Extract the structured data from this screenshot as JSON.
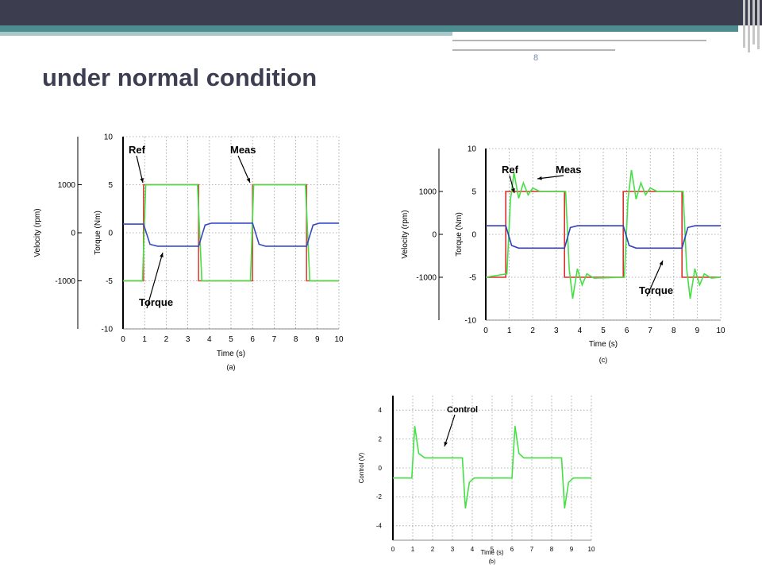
{
  "slide": {
    "title": "under normal condition",
    "page_number": "8"
  },
  "chart_data": [
    {
      "id": "a",
      "type": "line",
      "caption": "(a)",
      "xlabel": "Time (s)",
      "ylabel_left": "Velocity (rpm)",
      "ylabel_right": "Torque (Nm)",
      "xlim": [
        0,
        10
      ],
      "ylim": [
        -10,
        10
      ],
      "x_ticks": [
        0,
        1,
        2,
        3,
        4,
        5,
        6,
        7,
        8,
        9,
        10
      ],
      "y_ticks": [
        -10,
        -5,
        0,
        5,
        10
      ],
      "velocity_ticks": [
        -1000,
        0,
        1000
      ],
      "grid": true,
      "series": [
        {
          "name": "Ref",
          "color": "#e0433f",
          "points": [
            [
              0,
              -5
            ],
            [
              0.95,
              -5
            ],
            [
              0.95,
              5
            ],
            [
              3.5,
              5
            ],
            [
              3.5,
              -5
            ],
            [
              6,
              -5
            ],
            [
              6,
              5
            ],
            [
              8.5,
              5
            ],
            [
              8.5,
              -5
            ],
            [
              10,
              -5
            ]
          ]
        },
        {
          "name": "Meas",
          "color": "#44e044",
          "points": [
            [
              0,
              -5
            ],
            [
              0.9,
              -5
            ],
            [
              1.05,
              5
            ],
            [
              3.45,
              5
            ],
            [
              3.65,
              -5
            ],
            [
              5.9,
              -5
            ],
            [
              6.05,
              5
            ],
            [
              8.45,
              5
            ],
            [
              8.65,
              -5
            ],
            [
              10,
              -5
            ]
          ]
        },
        {
          "name": "Torque",
          "color": "#3648c8",
          "points": [
            [
              0,
              0.9
            ],
            [
              0.95,
              0.9
            ],
            [
              1.25,
              -1.2
            ],
            [
              1.6,
              -1.4
            ],
            [
              3.5,
              -1.4
            ],
            [
              3.8,
              0.8
            ],
            [
              4.1,
              1.0
            ],
            [
              6,
              1.0
            ],
            [
              6.3,
              -1.2
            ],
            [
              6.6,
              -1.4
            ],
            [
              8.5,
              -1.4
            ],
            [
              8.8,
              0.8
            ],
            [
              9.1,
              1.0
            ],
            [
              10,
              1.0
            ]
          ]
        }
      ],
      "annotations": [
        "Ref",
        "Meas",
        "Torque"
      ]
    },
    {
      "id": "c",
      "type": "line",
      "caption": "(c)",
      "xlabel": "Time (s)",
      "ylabel_left": "Velocity (rpm)",
      "ylabel_right": "Torque (Nm)",
      "xlim": [
        0,
        10
      ],
      "ylim": [
        -10,
        10
      ],
      "x_ticks": [
        0,
        1,
        2,
        3,
        4,
        5,
        6,
        7,
        8,
        9,
        10
      ],
      "y_ticks": [
        -10,
        -5,
        0,
        5,
        10
      ],
      "velocity_ticks": [
        -1000,
        0,
        1000
      ],
      "grid": true,
      "series": [
        {
          "name": "Ref",
          "color": "#d8302c",
          "points": [
            [
              0,
              -5
            ],
            [
              0.85,
              -5
            ],
            [
              0.85,
              5
            ],
            [
              3.35,
              5
            ],
            [
              3.35,
              -5
            ],
            [
              5.85,
              -5
            ],
            [
              5.85,
              5
            ],
            [
              8.35,
              5
            ],
            [
              8.35,
              -5
            ],
            [
              10,
              -5
            ]
          ]
        },
        {
          "name": "Meas",
          "color": "#44e044",
          "points": [
            [
              0,
              -5
            ],
            [
              0.9,
              -4.6
            ],
            [
              1.05,
              4
            ],
            [
              1.2,
              7.2
            ],
            [
              1.4,
              4.2
            ],
            [
              1.6,
              6
            ],
            [
              1.8,
              4.6
            ],
            [
              2.0,
              5.4
            ],
            [
              2.3,
              5
            ],
            [
              3.4,
              5
            ],
            [
              3.55,
              -4
            ],
            [
              3.7,
              -7.5
            ],
            [
              3.9,
              -4
            ],
            [
              4.1,
              -5.9
            ],
            [
              4.3,
              -4.6
            ],
            [
              4.6,
              -5.1
            ],
            [
              5.9,
              -5
            ],
            [
              6.05,
              4
            ],
            [
              6.2,
              7.5
            ],
            [
              6.4,
              4.1
            ],
            [
              6.6,
              6
            ],
            [
              6.8,
              4.6
            ],
            [
              7.0,
              5.4
            ],
            [
              7.3,
              5
            ],
            [
              8.4,
              5
            ],
            [
              8.55,
              -4
            ],
            [
              8.7,
              -7.5
            ],
            [
              8.9,
              -4
            ],
            [
              9.1,
              -5.9
            ],
            [
              9.3,
              -4.6
            ],
            [
              9.6,
              -5.1
            ],
            [
              10,
              -5
            ]
          ]
        },
        {
          "name": "Torque",
          "color": "#2f3fc0",
          "points": [
            [
              0,
              1.0
            ],
            [
              0.85,
              1.0
            ],
            [
              1.1,
              -1.3
            ],
            [
              1.4,
              -1.6
            ],
            [
              3.35,
              -1.6
            ],
            [
              3.6,
              0.8
            ],
            [
              3.9,
              1.0
            ],
            [
              5.85,
              1.0
            ],
            [
              6.1,
              -1.3
            ],
            [
              6.4,
              -1.6
            ],
            [
              8.35,
              -1.6
            ],
            [
              8.6,
              0.8
            ],
            [
              8.9,
              1.0
            ],
            [
              10,
              1.0
            ]
          ]
        }
      ],
      "annotations": [
        "Ref",
        "Meas",
        "Torque"
      ]
    },
    {
      "id": "b",
      "type": "line",
      "caption": "(b)",
      "xlabel": "Time (s)",
      "ylabel": "Control (V)",
      "xlim": [
        0,
        10
      ],
      "ylim": [
        -5,
        5
      ],
      "x_ticks": [
        0,
        1,
        2,
        3,
        4,
        5,
        6,
        7,
        8,
        9,
        10
      ],
      "y_ticks": [
        -4,
        -2,
        0,
        2,
        4
      ],
      "grid": true,
      "series": [
        {
          "name": "Control",
          "color": "#44e044",
          "points": [
            [
              0,
              -0.7
            ],
            [
              0.95,
              -0.7
            ],
            [
              1.1,
              2.9
            ],
            [
              1.3,
              1.0
            ],
            [
              1.6,
              0.7
            ],
            [
              3.5,
              0.7
            ],
            [
              3.65,
              -2.8
            ],
            [
              3.85,
              -1.0
            ],
            [
              4.1,
              -0.7
            ],
            [
              6,
              -0.7
            ],
            [
              6.15,
              2.9
            ],
            [
              6.35,
              1.0
            ],
            [
              6.6,
              0.7
            ],
            [
              8.5,
              0.7
            ],
            [
              8.65,
              -2.8
            ],
            [
              8.85,
              -1.0
            ],
            [
              9.1,
              -0.7
            ],
            [
              10,
              -0.7
            ]
          ]
        }
      ],
      "annotations": [
        "Control"
      ]
    }
  ]
}
